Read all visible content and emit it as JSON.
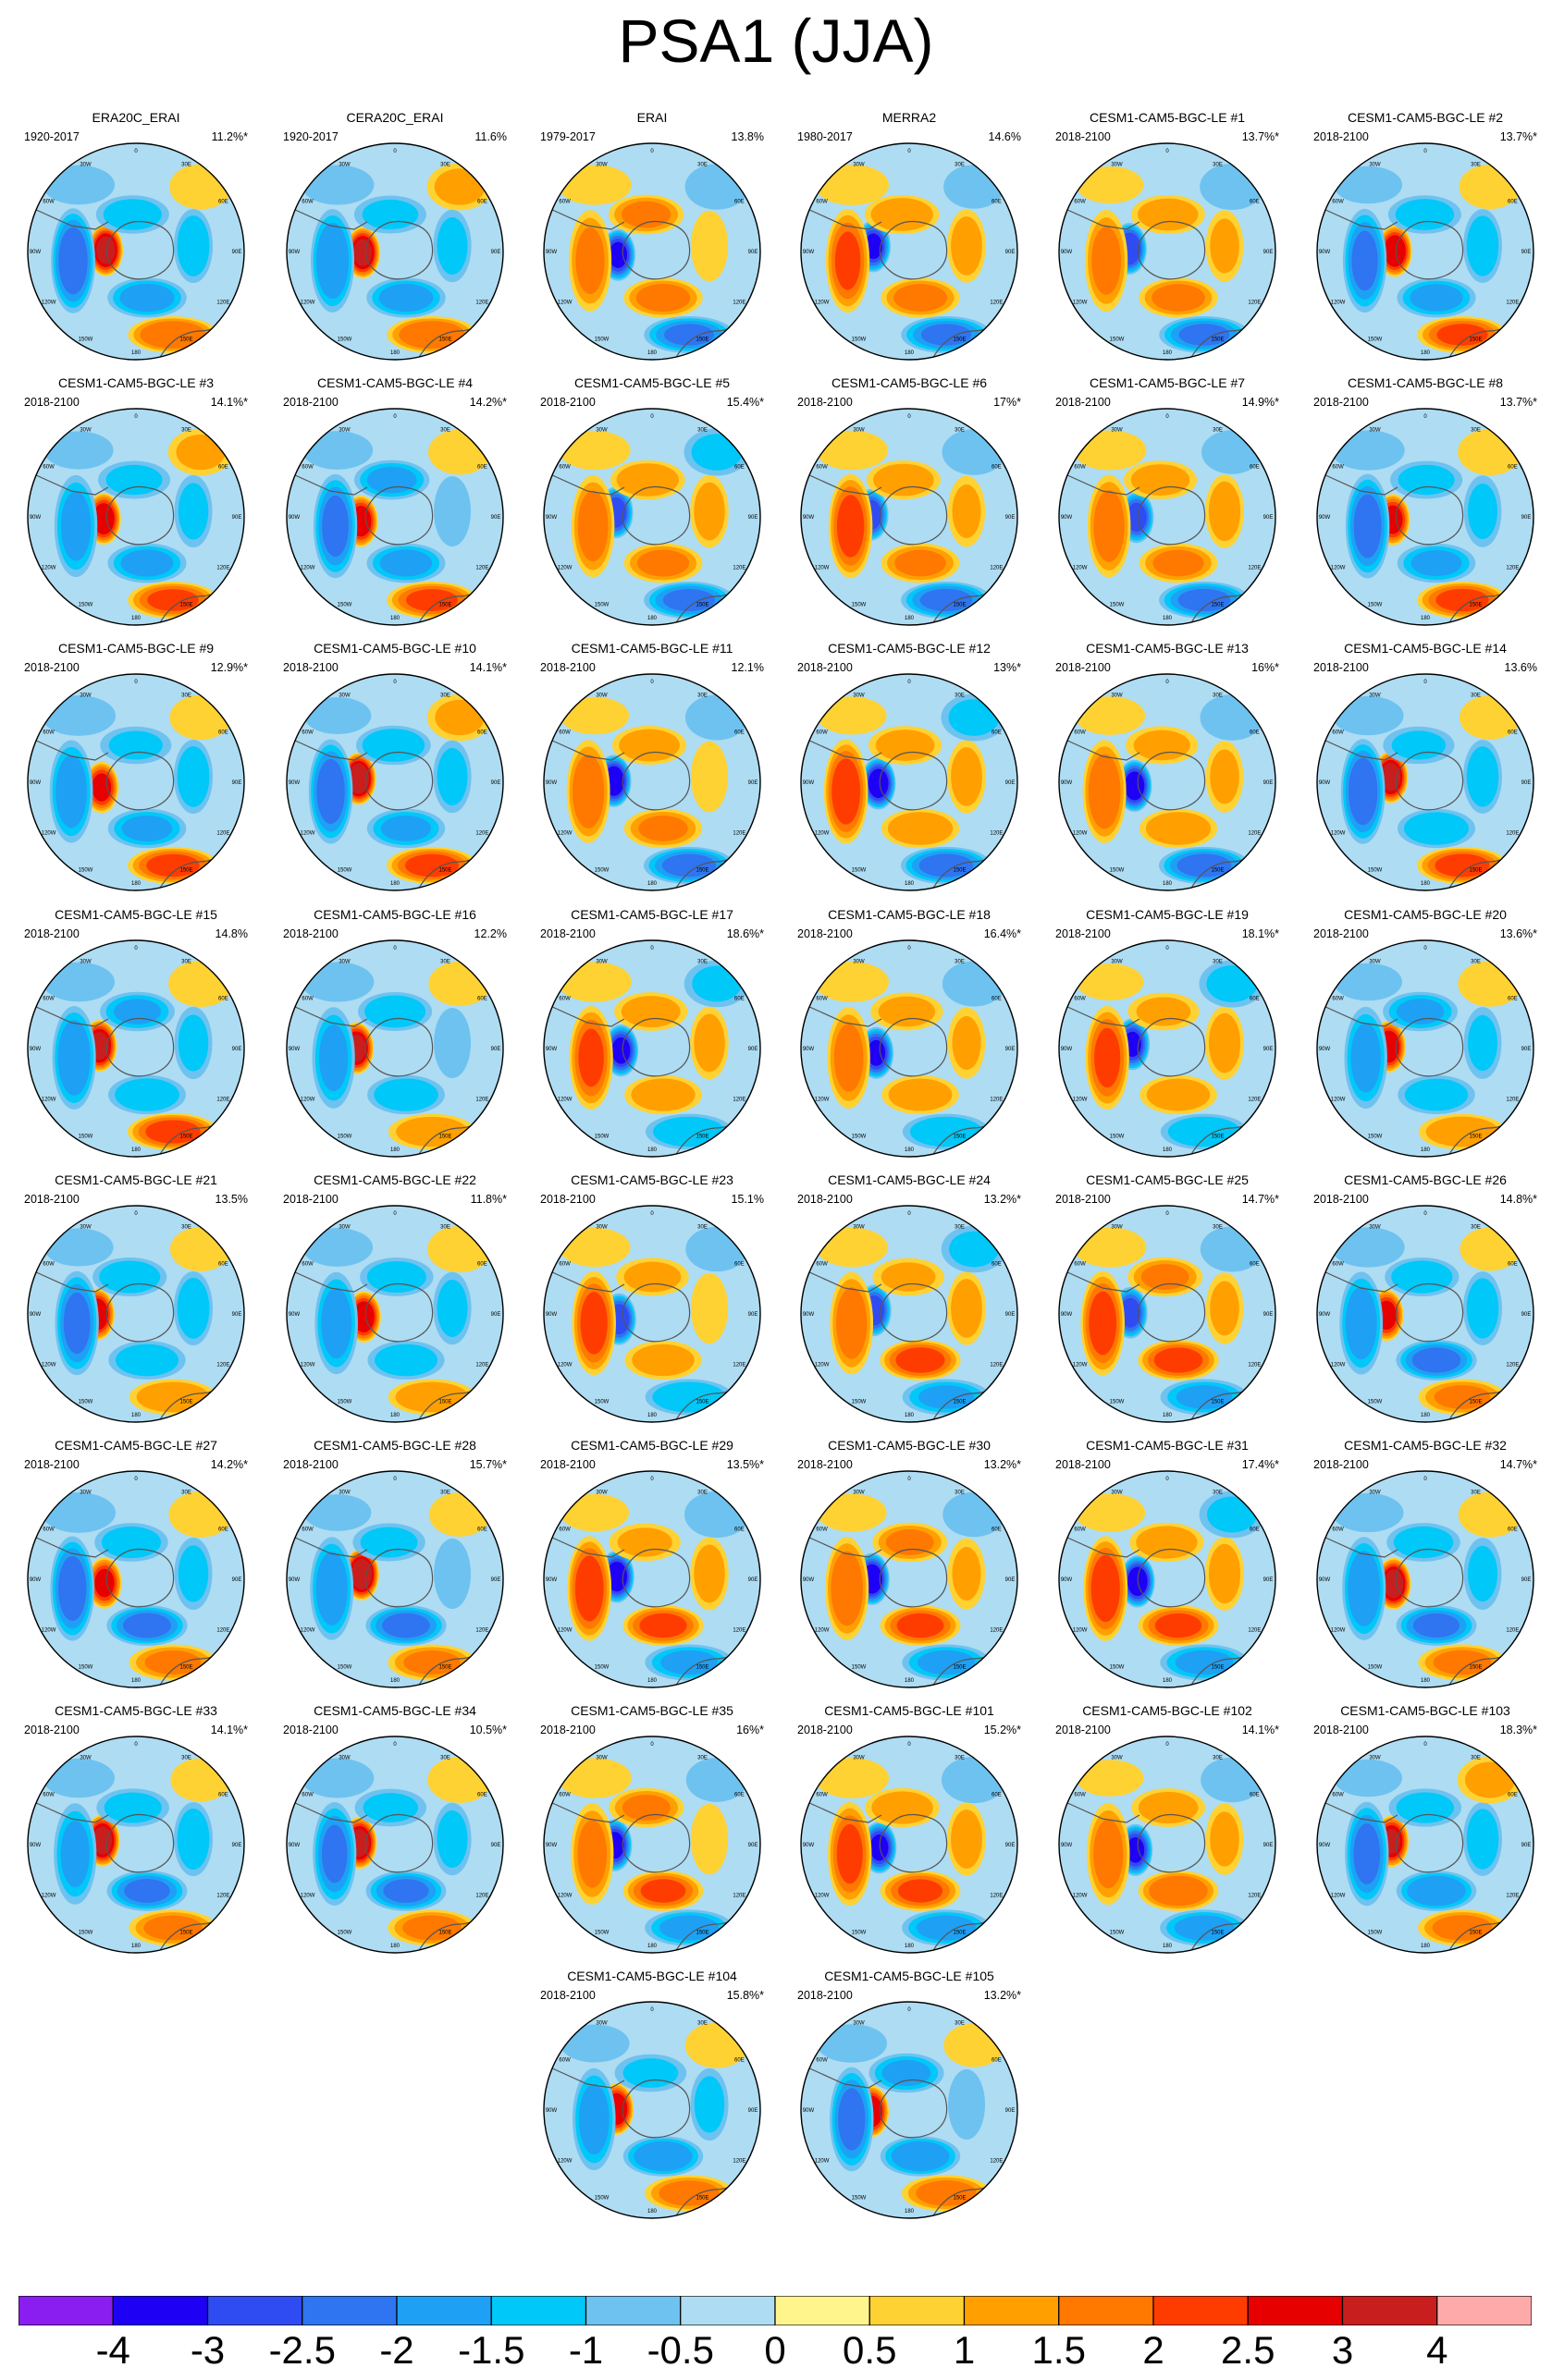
{
  "title": "PSA1 (JJA)",
  "map_labels": {
    "lon_0": "0",
    "lon_30w": "30W",
    "lon_60w": "60W",
    "lon_90w": "90W",
    "lon_120w": "120W",
    "lon_150w": "150W",
    "lon_180": "180",
    "lon_150e": "150E",
    "lon_120e": "120E",
    "lon_90e": "90E",
    "lon_60e": "60E",
    "lon_30e": "30E"
  },
  "panels": [
    {
      "title": "ERA20C_ERAI",
      "period": "1920-2017",
      "variance": "11.2%*"
    },
    {
      "title": "CERA20C_ERAI",
      "period": "1920-2017",
      "variance": "11.6%"
    },
    {
      "title": "ERAI",
      "period": "1979-2017",
      "variance": "13.8%"
    },
    {
      "title": "MERRA2",
      "period": "1980-2017",
      "variance": "14.6%"
    },
    {
      "title": "CESM1-CAM5-BGC-LE #1",
      "period": "2018-2100",
      "variance": "13.7%*"
    },
    {
      "title": "CESM1-CAM5-BGC-LE #2",
      "period": "2018-2100",
      "variance": "13.7%*"
    },
    {
      "title": "CESM1-CAM5-BGC-LE #3",
      "period": "2018-2100",
      "variance": "14.1%*"
    },
    {
      "title": "CESM1-CAM5-BGC-LE #4",
      "period": "2018-2100",
      "variance": "14.2%*"
    },
    {
      "title": "CESM1-CAM5-BGC-LE #5",
      "period": "2018-2100",
      "variance": "15.4%*"
    },
    {
      "title": "CESM1-CAM5-BGC-LE #6",
      "period": "2018-2100",
      "variance": "17%*"
    },
    {
      "title": "CESM1-CAM5-BGC-LE #7",
      "period": "2018-2100",
      "variance": "14.9%*"
    },
    {
      "title": "CESM1-CAM5-BGC-LE #8",
      "period": "2018-2100",
      "variance": "13.7%*"
    },
    {
      "title": "CESM1-CAM5-BGC-LE #9",
      "period": "2018-2100",
      "variance": "12.9%*"
    },
    {
      "title": "CESM1-CAM5-BGC-LE #10",
      "period": "2018-2100",
      "variance": "14.1%*"
    },
    {
      "title": "CESM1-CAM5-BGC-LE #11",
      "period": "2018-2100",
      "variance": "12.1%"
    },
    {
      "title": "CESM1-CAM5-BGC-LE #12",
      "period": "2018-2100",
      "variance": "13%*"
    },
    {
      "title": "CESM1-CAM5-BGC-LE #13",
      "period": "2018-2100",
      "variance": "16%*"
    },
    {
      "title": "CESM1-CAM5-BGC-LE #14",
      "period": "2018-2100",
      "variance": "13.6%"
    },
    {
      "title": "CESM1-CAM5-BGC-LE #15",
      "period": "2018-2100",
      "variance": "14.8%"
    },
    {
      "title": "CESM1-CAM5-BGC-LE #16",
      "period": "2018-2100",
      "variance": "12.2%"
    },
    {
      "title": "CESM1-CAM5-BGC-LE #17",
      "period": "2018-2100",
      "variance": "18.6%*"
    },
    {
      "title": "CESM1-CAM5-BGC-LE #18",
      "period": "2018-2100",
      "variance": "16.4%*"
    },
    {
      "title": "CESM1-CAM5-BGC-LE #19",
      "period": "2018-2100",
      "variance": "18.1%*"
    },
    {
      "title": "CESM1-CAM5-BGC-LE #20",
      "period": "2018-2100",
      "variance": "13.6%*"
    },
    {
      "title": "CESM1-CAM5-BGC-LE #21",
      "period": "2018-2100",
      "variance": "13.5%"
    },
    {
      "title": "CESM1-CAM5-BGC-LE #22",
      "period": "2018-2100",
      "variance": "11.8%*"
    },
    {
      "title": "CESM1-CAM5-BGC-LE #23",
      "period": "2018-2100",
      "variance": "15.1%"
    },
    {
      "title": "CESM1-CAM5-BGC-LE #24",
      "period": "2018-2100",
      "variance": "13.2%*"
    },
    {
      "title": "CESM1-CAM5-BGC-LE #25",
      "period": "2018-2100",
      "variance": "14.7%*"
    },
    {
      "title": "CESM1-CAM5-BGC-LE #26",
      "period": "2018-2100",
      "variance": "14.8%*"
    },
    {
      "title": "CESM1-CAM5-BGC-LE #27",
      "period": "2018-2100",
      "variance": "14.2%*"
    },
    {
      "title": "CESM1-CAM5-BGC-LE #28",
      "period": "2018-2100",
      "variance": "15.7%*"
    },
    {
      "title": "CESM1-CAM5-BGC-LE #29",
      "period": "2018-2100",
      "variance": "13.5%*"
    },
    {
      "title": "CESM1-CAM5-BGC-LE #30",
      "period": "2018-2100",
      "variance": "13.2%*"
    },
    {
      "title": "CESM1-CAM5-BGC-LE #31",
      "period": "2018-2100",
      "variance": "17.4%*"
    },
    {
      "title": "CESM1-CAM5-BGC-LE #32",
      "period": "2018-2100",
      "variance": "14.7%*"
    },
    {
      "title": "CESM1-CAM5-BGC-LE #33",
      "period": "2018-2100",
      "variance": "14.1%*"
    },
    {
      "title": "CESM1-CAM5-BGC-LE #34",
      "period": "2018-2100",
      "variance": "10.5%*"
    },
    {
      "title": "CESM1-CAM5-BGC-LE #35",
      "period": "2018-2100",
      "variance": "16%*"
    },
    {
      "title": "CESM1-CAM5-BGC-LE #101",
      "period": "2018-2100",
      "variance": "15.2%*"
    },
    {
      "title": "CESM1-CAM5-BGC-LE #102",
      "period": "2018-2100",
      "variance": "14.1%*"
    },
    {
      "title": "CESM1-CAM5-BGC-LE #103",
      "period": "2018-2100",
      "variance": "18.3%*"
    },
    {
      "title": "CESM1-CAM5-BGC-LE #104",
      "period": "2018-2100",
      "variance": "15.8%*"
    },
    {
      "title": "CESM1-CAM5-BGC-LE #105",
      "period": "2018-2100",
      "variance": "13.2%*"
    }
  ],
  "colorbar": {
    "colors": [
      "#8a1ef0",
      "#1e00f5",
      "#2f4cf2",
      "#2f74f0",
      "#1ea0f5",
      "#00c8f8",
      "#6ec2f0",
      "#aedcf2",
      "#fff58c",
      "#ffd233",
      "#ffa000",
      "#ff7800",
      "#ff3c00",
      "#e60000",
      "#c81e1e",
      "#ffaaaa"
    ],
    "labels": [
      "-4",
      "-3",
      "-2.5",
      "-2",
      "-1.5",
      "-1",
      "-0.5",
      "0",
      "0.5",
      "1",
      "1.5",
      "2",
      "2.5",
      "3",
      "4"
    ]
  }
}
